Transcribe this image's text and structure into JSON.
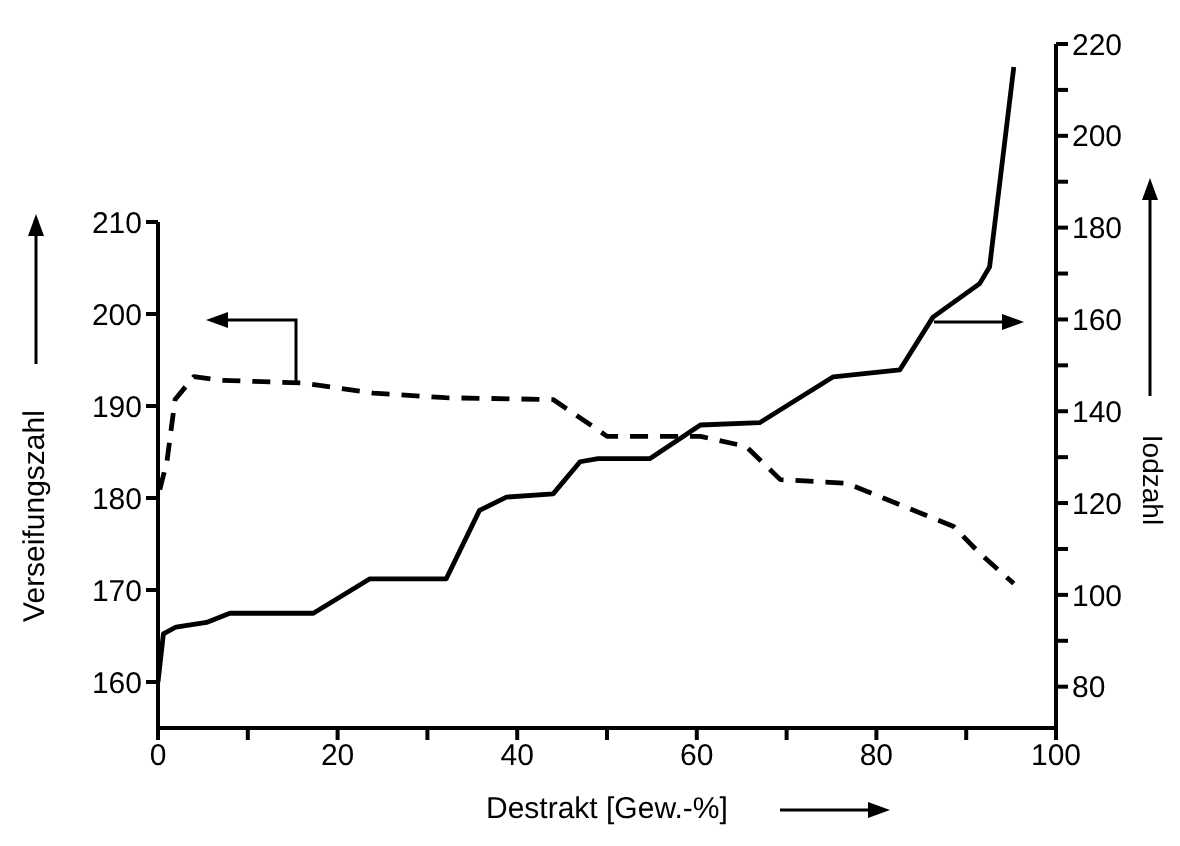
{
  "chart_data": {
    "type": "line",
    "xlabel": "Destrakt [Gew.-%]",
    "ylabel": "Verseifungszahl",
    "y2label": "Iodzahl",
    "xlim": [
      0,
      100
    ],
    "xticks": [
      0,
      {
        "value": 10,
        "label": null
      },
      20,
      {
        "value": 30,
        "label": null
      },
      40,
      {
        "value": 50,
        "label": null
      },
      60,
      {
        "value": 70,
        "label": null
      },
      80,
      {
        "value": 90,
        "label": null
      },
      100
    ],
    "ylim": [
      155,
      210
    ],
    "yticks": [
      160,
      170,
      180,
      190,
      200,
      210
    ],
    "y2lim": [
      71,
      220
    ],
    "y2ticks": [
      80,
      {
        "value": 90,
        "label": null
      },
      100,
      {
        "value": 110,
        "label": null
      },
      120,
      {
        "value": 130,
        "label": null
      },
      140,
      {
        "value": 150,
        "label": null
      },
      160,
      {
        "value": 170,
        "label": null
      },
      180,
      {
        "value": 190,
        "label": null
      },
      200,
      {
        "value": 210,
        "label": null
      },
      220
    ],
    "grid": false,
    "legend": false,
    "marker": "none",
    "series": [
      {
        "color": "#000000",
        "line_style": "dashed",
        "x": [
          0.2,
          1,
          1.9,
          4,
          7,
          16,
          24,
          32,
          44,
          49,
          50,
          60.4,
          65.5,
          69.3,
          76.7,
          88.6,
          91.5,
          95.3
        ],
        "values": [
          180.9,
          184,
          190.7,
          193.2,
          192.8,
          192.5,
          191.4,
          190.9,
          190.7,
          187.4,
          186.7,
          186.7,
          185.6,
          182,
          181.6,
          176.9,
          174,
          170.7
        ]
      },
      {
        "color": "#000000",
        "line_style": "solid",
        "axis": "y2",
        "x": [
          0,
          0.6,
          2,
          5.4,
          8,
          17.3,
          23.6,
          32.1,
          35.8,
          38.8,
          44,
          47,
          49,
          54.8,
          60.4,
          67,
          75.2,
          82.6,
          86.3,
          91.5,
          92.6,
          95.3
        ],
        "values": [
          81,
          91.5,
          93,
          94,
          96,
          96,
          103.5,
          103.5,
          118.4,
          121.3,
          122,
          129,
          129.7,
          129.7,
          137,
          137.5,
          147.5,
          149,
          160.5,
          167.8,
          171.4,
          215
        ]
      }
    ]
  }
}
